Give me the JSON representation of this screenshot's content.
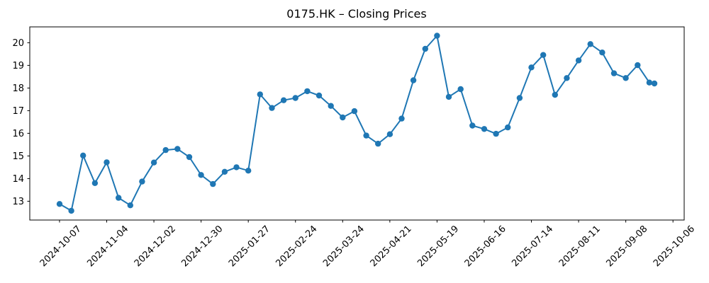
{
  "chart_data": {
    "type": "line",
    "title": "0175.HK – Closing Prices",
    "series_name": "Closing price",
    "x": [
      "2024-10-07",
      "2024-10-14",
      "2024-10-21",
      "2024-10-28",
      "2024-11-04",
      "2024-11-11",
      "2024-11-18",
      "2024-11-25",
      "2024-12-02",
      "2024-12-09",
      "2024-12-16",
      "2024-12-23",
      "2024-12-30",
      "2025-01-06",
      "2025-01-13",
      "2025-01-20",
      "2025-01-27",
      "2025-02-03",
      "2025-02-10",
      "2025-02-17",
      "2025-02-24",
      "2025-03-03",
      "2025-03-10",
      "2025-03-17",
      "2025-03-24",
      "2025-03-31",
      "2025-04-07",
      "2025-04-14",
      "2025-04-21",
      "2025-04-28",
      "2025-05-05",
      "2025-05-12",
      "2025-05-19",
      "2025-05-26",
      "2025-06-02",
      "2025-06-09",
      "2025-06-16",
      "2025-06-23",
      "2025-06-30",
      "2025-07-07",
      "2025-07-14",
      "2025-07-21",
      "2025-07-28",
      "2025-08-04",
      "2025-08-11",
      "2025-08-18",
      "2025-08-25",
      "2025-09-01",
      "2025-09-08",
      "2025-09-15",
      "2025-09-22",
      "2025-09-25"
    ],
    "values": [
      12.88,
      12.58,
      15.02,
      13.8,
      14.72,
      13.15,
      12.82,
      13.87,
      14.71,
      15.26,
      15.31,
      14.95,
      14.16,
      13.76,
      14.3,
      14.5,
      14.35,
      17.72,
      17.12,
      17.46,
      17.56,
      17.86,
      17.67,
      17.21,
      16.7,
      16.98,
      15.9,
      15.54,
      15.96,
      16.65,
      18.34,
      19.73,
      20.31,
      17.61,
      17.95,
      16.34,
      16.19,
      15.98,
      16.26,
      17.56,
      18.91,
      19.46,
      17.7,
      18.44,
      19.22,
      19.94,
      19.57,
      18.65,
      18.44,
      19.01,
      18.24,
      18.2
    ],
    "xlabel": "",
    "ylabel": "",
    "xticks": [
      "2024-10-07",
      "2024-11-04",
      "2024-12-02",
      "2024-12-30",
      "2025-01-27",
      "2025-02-24",
      "2025-03-24",
      "2025-04-21",
      "2025-05-19",
      "2025-06-16",
      "2025-07-14",
      "2025-08-11",
      "2025-09-08",
      "2025-10-06"
    ],
    "yticks": [
      13,
      14,
      15,
      16,
      17,
      18,
      19,
      20
    ],
    "ylim": [
      12.17,
      20.7
    ],
    "x_tick_rotation_deg": 45,
    "line_color": "#1f77b4",
    "marker": "circle",
    "grid": false,
    "legend_position": "none"
  }
}
